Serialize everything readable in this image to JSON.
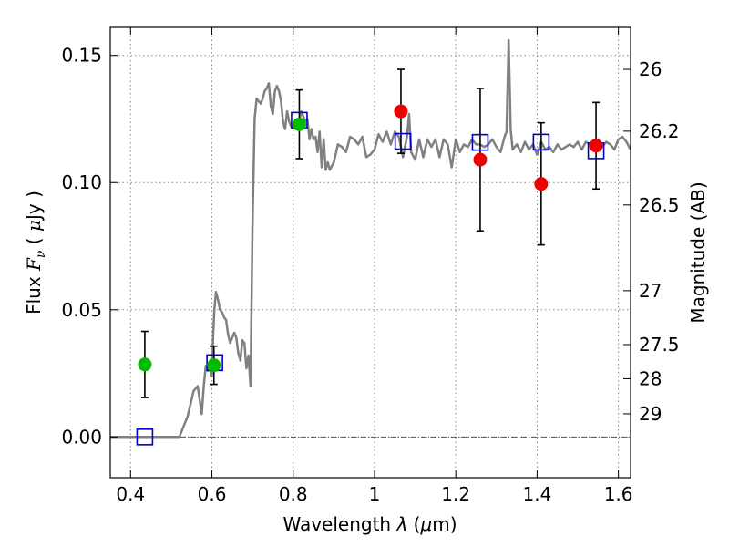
{
  "chart_data": {
    "type": "scatter",
    "xlabel": "Wavelength  λ (μm)",
    "xlabel_prefix": "Wavelength  ",
    "xlabel_lambda": "λ",
    "xlabel_unit_open": " (",
    "xlabel_mu": "μ",
    "xlabel_unit_close": "m)",
    "ylabel": "Flux  Fν  ( μJy )",
    "ylabel_word": "Flux  ",
    "ylabel_F": "F",
    "ylabel_nu": "ν",
    "ylabel_open": "  ( ",
    "ylabel_mu": "μ",
    "ylabel_close": "Jy )",
    "y2label": "Magnitude (AB)",
    "xlim": [
      0.35,
      1.63
    ],
    "ylim": [
      -0.016,
      0.161
    ],
    "xticks": [
      0.4,
      0.6,
      0.8,
      1.0,
      1.2,
      1.4,
      1.6
    ],
    "xtick_labels": [
      "0.4",
      "0.6",
      "0.8",
      "1",
      "1.2",
      "1.4",
      "1.6"
    ],
    "yticks": [
      0.0,
      0.05,
      0.1,
      0.15
    ],
    "ytick_labels": [
      "0.00",
      "0.05",
      "0.10",
      "0.15"
    ],
    "y2ticks": [
      {
        "label": "26",
        "flux": 0.1445
      },
      {
        "label": "26.2",
        "flux": 0.1202
      },
      {
        "label": "26.5",
        "flux": 0.0912
      },
      {
        "label": "27",
        "flux": 0.0575
      },
      {
        "label": "27.5",
        "flux": 0.0363
      },
      {
        "label": "28",
        "flux": 0.0229
      },
      {
        "label": "29",
        "flux": 0.0091
      }
    ],
    "grid": true,
    "zero_line": 0.0,
    "colors": {
      "model": "#808080",
      "green_points": "#00bb00",
      "red_points": "#ee0000",
      "squares": "#0000cc",
      "errorbars": "#000000",
      "grid": "#888888"
    },
    "series": [
      {
        "name": "model spectrum",
        "kind": "line",
        "x": [
          0.35,
          0.52,
          0.54,
          0.555,
          0.565,
          0.575,
          0.58,
          0.585,
          0.59,
          0.595,
          0.6,
          0.603,
          0.606,
          0.61,
          0.615,
          0.62,
          0.625,
          0.63,
          0.635,
          0.64,
          0.645,
          0.65,
          0.655,
          0.66,
          0.665,
          0.67,
          0.675,
          0.68,
          0.685,
          0.69,
          0.695,
          0.7,
          0.705,
          0.71,
          0.715,
          0.72,
          0.725,
          0.73,
          0.735,
          0.74,
          0.745,
          0.75,
          0.755,
          0.76,
          0.765,
          0.77,
          0.775,
          0.78,
          0.785,
          0.79,
          0.795,
          0.8,
          0.81,
          0.82,
          0.83,
          0.835,
          0.84,
          0.845,
          0.85,
          0.855,
          0.86,
          0.865,
          0.87,
          0.875,
          0.88,
          0.885,
          0.89,
          0.9,
          0.91,
          0.92,
          0.93,
          0.94,
          0.95,
          0.96,
          0.97,
          0.98,
          0.99,
          1.0,
          1.01,
          1.02,
          1.03,
          1.04,
          1.05,
          1.06,
          1.07,
          1.08,
          1.085,
          1.09,
          1.1,
          1.11,
          1.12,
          1.13,
          1.14,
          1.15,
          1.16,
          1.17,
          1.18,
          1.19,
          1.2,
          1.21,
          1.22,
          1.23,
          1.24,
          1.25,
          1.26,
          1.27,
          1.28,
          1.29,
          1.3,
          1.31,
          1.32,
          1.325,
          1.33,
          1.335,
          1.34,
          1.35,
          1.36,
          1.37,
          1.38,
          1.39,
          1.4,
          1.41,
          1.42,
          1.43,
          1.44,
          1.45,
          1.46,
          1.47,
          1.48,
          1.49,
          1.5,
          1.51,
          1.52,
          1.53,
          1.54,
          1.55,
          1.56,
          1.57,
          1.58,
          1.59,
          1.6,
          1.61,
          1.62,
          1.63
        ],
        "y": [
          0.0,
          0.0,
          0.008,
          0.018,
          0.02,
          0.009,
          0.02,
          0.028,
          0.026,
          0.028,
          0.024,
          0.04,
          0.05,
          0.057,
          0.054,
          0.05,
          0.049,
          0.047,
          0.046,
          0.04,
          0.037,
          0.039,
          0.041,
          0.039,
          0.033,
          0.03,
          0.038,
          0.037,
          0.027,
          0.032,
          0.02,
          0.083,
          0.125,
          0.133,
          0.132,
          0.131,
          0.133,
          0.136,
          0.137,
          0.139,
          0.13,
          0.127,
          0.136,
          0.138,
          0.136,
          0.132,
          0.124,
          0.121,
          0.128,
          0.124,
          0.122,
          0.122,
          0.121,
          0.128,
          0.124,
          0.125,
          0.117,
          0.121,
          0.117,
          0.118,
          0.112,
          0.12,
          0.106,
          0.117,
          0.105,
          0.108,
          0.105,
          0.108,
          0.115,
          0.114,
          0.112,
          0.118,
          0.117,
          0.115,
          0.118,
          0.11,
          0.111,
          0.113,
          0.119,
          0.116,
          0.12,
          0.115,
          0.12,
          0.118,
          0.11,
          0.118,
          0.127,
          0.112,
          0.109,
          0.117,
          0.11,
          0.117,
          0.114,
          0.117,
          0.11,
          0.117,
          0.115,
          0.106,
          0.117,
          0.112,
          0.115,
          0.114,
          0.117,
          0.115,
          0.115,
          0.114,
          0.115,
          0.117,
          0.114,
          0.112,
          0.118,
          0.12,
          0.156,
          0.121,
          0.113,
          0.115,
          0.112,
          0.116,
          0.113,
          0.115,
          0.111,
          0.116,
          0.113,
          0.114,
          0.112,
          0.115,
          0.113,
          0.114,
          0.115,
          0.114,
          0.116,
          0.113,
          0.116,
          0.115,
          0.113,
          0.117,
          0.114,
          0.116,
          0.115,
          0.113,
          0.117,
          0.118,
          0.116,
          0.113
        ]
      },
      {
        "name": "green photometry",
        "kind": "points",
        "points": [
          {
            "x": 0.435,
            "y": 0.0285,
            "err": 0.013
          },
          {
            "x": 0.605,
            "y": 0.0282,
            "err": 0.0075
          },
          {
            "x": 0.815,
            "y": 0.1229,
            "err": 0.0135
          }
        ]
      },
      {
        "name": "red photometry",
        "kind": "points",
        "points": [
          {
            "x": 1.065,
            "y": 0.128,
            "err": 0.0165
          },
          {
            "x": 1.26,
            "y": 0.109,
            "err": 0.028
          },
          {
            "x": 1.41,
            "y": 0.0995,
            "err": 0.024
          },
          {
            "x": 1.545,
            "y": 0.1145,
            "err": 0.017
          }
        ]
      },
      {
        "name": "model synthetic photometry",
        "kind": "squares",
        "points": [
          {
            "x": 0.435,
            "y": 0.0
          },
          {
            "x": 0.607,
            "y": 0.0292
          },
          {
            "x": 0.815,
            "y": 0.1245
          },
          {
            "x": 1.07,
            "y": 0.1162
          },
          {
            "x": 1.26,
            "y": 0.1158
          },
          {
            "x": 1.41,
            "y": 0.1159
          },
          {
            "x": 1.545,
            "y": 0.1125
          }
        ]
      }
    ]
  }
}
